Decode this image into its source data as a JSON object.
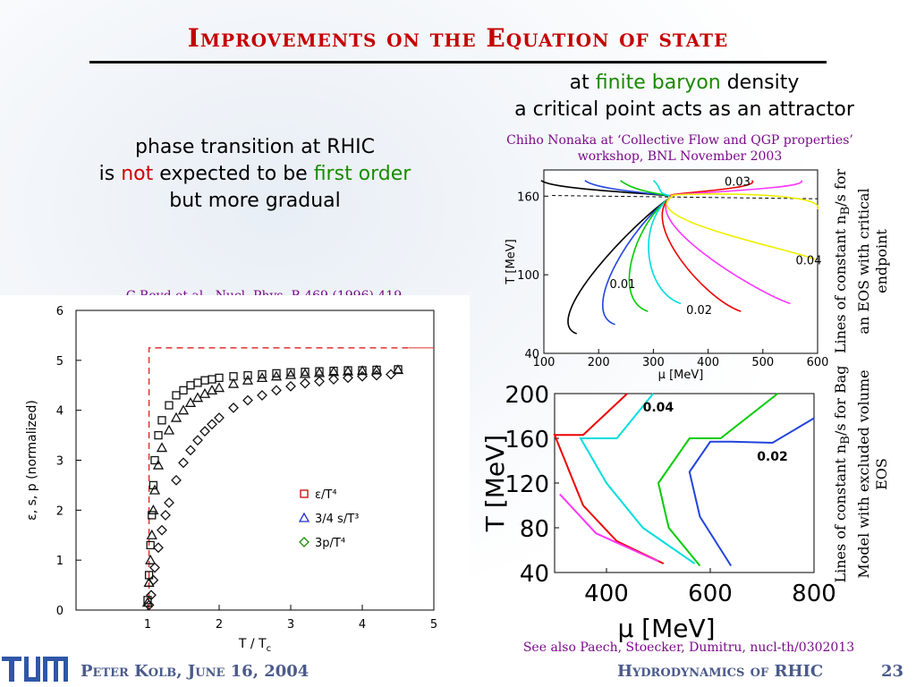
{
  "title": "Improvements on the Equation of state",
  "left_heading": {
    "line1": "phase transition at RHIC",
    "line2_a": "is ",
    "line2_b": "not",
    "line2_c": " expected to be ",
    "line2_d": "first order",
    "line3": "but more gradual"
  },
  "right_heading": {
    "line1_a": "at ",
    "line1_b": "finite baryon",
    "line1_c": " density",
    "line2": "a critical point acts as an attractor"
  },
  "source_nonaka": "Chiho Nonaka at ‘Collective Flow and QGP properties’ workshop, BNL November 2003",
  "source_boyd": "G.Boyd et al., Nucl. Phys. B 469 (1996) 419",
  "source_paech": "See also Paech, Stoecker, Dumitru, nucl-th/0302013",
  "label_top_right": "Lines of constant n",
  "label_top_right_sub": "B",
  "label_top_right_rest": "/s for an EOS with critical endpoint",
  "label_bottom_right": "Lines of constant n",
  "label_bottom_right_sub": "B",
  "label_bottom_right_rest": "/s for Bag Model with excluded volume EOS",
  "footer": {
    "author": "Peter Kolb, June 16, 2004",
    "talk": "Hydrodynamics of RHIC",
    "page": "23"
  },
  "colors": {
    "title": "#c40000",
    "accent_green": "#1a8a00",
    "accent_red": "#d00000",
    "footer": "#4a5a8a"
  },
  "chart_data": [
    {
      "type": "scatter",
      "xlabel": "T / T",
      "xlabel_sub": "c",
      "ylabel": "ε, s, p (normalized)",
      "xlim": [
        0,
        5
      ],
      "ylim": [
        0,
        6
      ],
      "xticks": [
        "1",
        "2",
        "3",
        "4",
        "5"
      ],
      "yticks": [
        "0",
        "1",
        "2",
        "3",
        "4",
        "5",
        "6"
      ],
      "legend_position": "right",
      "series": [
        {
          "name": "ε/T⁴",
          "marker": "square",
          "color": "#cc0000",
          "x": [
            1.0,
            1.02,
            1.04,
            1.06,
            1.08,
            1.1,
            1.15,
            1.2,
            1.3,
            1.4,
            1.5,
            1.6,
            1.7,
            1.8,
            1.9,
            2.0,
            2.2,
            2.4,
            2.6,
            2.8,
            3.0,
            3.2,
            3.4,
            3.6,
            3.8,
            4.0,
            4.2,
            4.5
          ],
          "y": [
            0.2,
            0.7,
            1.3,
            1.9,
            2.5,
            3.0,
            3.5,
            3.8,
            4.1,
            4.3,
            4.4,
            4.5,
            4.55,
            4.6,
            4.62,
            4.65,
            4.68,
            4.7,
            4.72,
            4.74,
            4.76,
            4.77,
            4.78,
            4.79,
            4.8,
            4.8,
            4.81,
            4.82
          ]
        },
        {
          "name": "3/4 s/T³",
          "marker": "triangle",
          "color": "#2233cc",
          "x": [
            1.0,
            1.02,
            1.04,
            1.06,
            1.08,
            1.1,
            1.15,
            1.2,
            1.3,
            1.4,
            1.5,
            1.6,
            1.7,
            1.8,
            1.9,
            2.0,
            2.2,
            2.4,
            2.6,
            2.8,
            3.0,
            3.2,
            3.4,
            3.6,
            3.8,
            4.0,
            4.2,
            4.5
          ],
          "y": [
            0.15,
            0.55,
            1.0,
            1.5,
            2.0,
            2.4,
            2.9,
            3.25,
            3.6,
            3.85,
            4.0,
            4.15,
            4.25,
            4.33,
            4.4,
            4.45,
            4.53,
            4.6,
            4.65,
            4.68,
            4.71,
            4.73,
            4.75,
            4.77,
            4.78,
            4.79,
            4.8,
            4.81
          ]
        },
        {
          "name": "3p/T⁴",
          "marker": "diamond",
          "color": "#1a8a00",
          "x": [
            1.02,
            1.05,
            1.08,
            1.1,
            1.15,
            1.2,
            1.25,
            1.3,
            1.4,
            1.5,
            1.6,
            1.7,
            1.8,
            1.9,
            2.0,
            2.2,
            2.4,
            2.6,
            2.8,
            3.0,
            3.2,
            3.4,
            3.6,
            3.8,
            4.0,
            4.2,
            4.4
          ],
          "y": [
            0.1,
            0.3,
            0.6,
            0.85,
            1.25,
            1.6,
            1.9,
            2.15,
            2.6,
            2.95,
            3.2,
            3.4,
            3.58,
            3.72,
            3.85,
            4.05,
            4.2,
            4.3,
            4.4,
            4.48,
            4.54,
            4.58,
            4.62,
            4.65,
            4.68,
            4.7,
            4.72
          ]
        }
      ],
      "stefan_boltzmann_limit": 5.25
    },
    {
      "type": "line",
      "xlabel": "μ [MeV]",
      "ylabel": "T [MeV]",
      "xlim": [
        100,
        600
      ],
      "ylim": [
        40,
        180
      ],
      "xticks": [
        "100",
        "200",
        "300",
        "400",
        "500",
        "600"
      ],
      "yticks": [
        "40",
        "100",
        "160"
      ],
      "annotations": [
        "0.01",
        "0.02",
        "0.03",
        "0.04"
      ]
    },
    {
      "type": "line",
      "xlabel": "μ [MeV]",
      "ylabel": "T [MeV]",
      "xlim": [
        300,
        800
      ],
      "ylim": [
        40,
        200
      ],
      "xticks": [
        "400",
        "600",
        "800"
      ],
      "yticks": [
        "40",
        "80",
        "120",
        "160",
        "200"
      ],
      "annotations": [
        "0.04",
        "0.02"
      ]
    }
  ]
}
